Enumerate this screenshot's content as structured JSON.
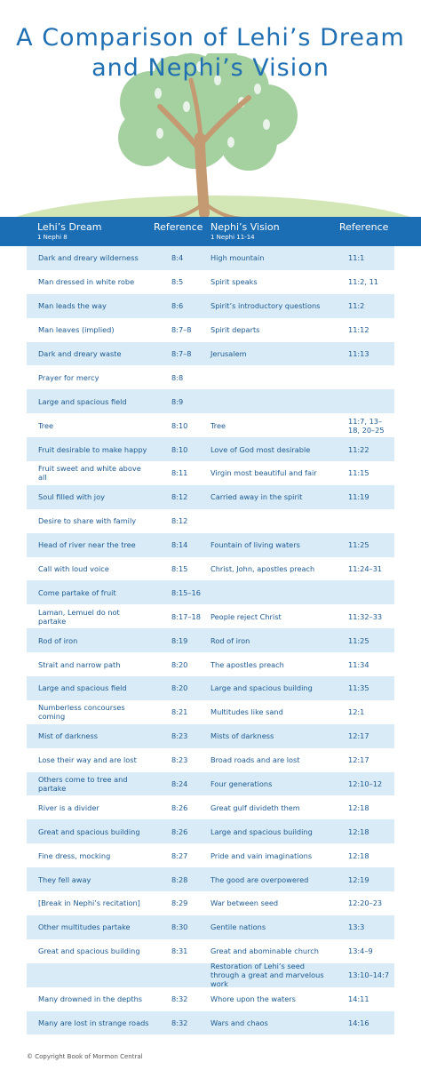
{
  "header": {
    "title": "A Comparison of Lehi’s Dream and Nephi’s Vision"
  },
  "table": {
    "columns": [
      {
        "label": "Lehi’s Dream",
        "sub": "1 Nephi 8"
      },
      {
        "label": "Reference"
      },
      {
        "label": "Nephi’s Vision",
        "sub": "1 Nephi 11-14"
      },
      {
        "label": "Reference"
      }
    ],
    "rows": [
      [
        "Dark and dreary wilderness",
        "8:4",
        "High mountain",
        "11:1"
      ],
      [
        "Man dressed in white robe",
        "8:5",
        "Spirit speaks",
        "11:2, 11"
      ],
      [
        "Man leads the way",
        "8:6",
        "Spirit’s introductory questions",
        "11:2"
      ],
      [
        "Man leaves (implied)",
        "8:7–8",
        "Spirit departs",
        "11:12"
      ],
      [
        "Dark and dreary waste",
        "8:7–8",
        "Jerusalem",
        "11:13"
      ],
      [
        "Prayer for mercy",
        "8:8",
        null,
        null
      ],
      [
        "Large and spacious field",
        "8:9",
        null,
        null
      ],
      [
        "Tree",
        "8:10",
        "Tree",
        "11:7, 13–18, 20–25"
      ],
      [
        "Fruit desirable to make happy",
        "8:10",
        "Love of God most desirable",
        "11:22"
      ],
      [
        "Fruit sweet and white above all",
        "8:11",
        "Virgin most beautiful and fair",
        "11:15"
      ],
      [
        "Soul filled with joy",
        "8:12",
        "Carried away in the spirit",
        "11:19"
      ],
      [
        "Desire to share with family",
        "8:12",
        null,
        null
      ],
      [
        "Head of river near the tree",
        "8:14",
        "Fountain of living waters",
        "11:25"
      ],
      [
        "Call with loud voice",
        "8:15",
        "Christ, John, apostles preach",
        "11:24–31"
      ],
      [
        "Come partake of fruit",
        "8:15–16",
        null,
        null
      ],
      [
        "Laman, Lemuel do not partake",
        "8:17–18",
        "People reject Christ",
        "11:32–33"
      ],
      [
        "Rod of iron",
        "8:19",
        "Rod of iron",
        "11:25"
      ],
      [
        "Strait and narrow path",
        "8:20",
        "The apostles preach",
        "11:34"
      ],
      [
        "Large and spacious field",
        "8:20",
        "Large and spacious building",
        "11:35"
      ],
      [
        "Numberless concourses coming",
        "8:21",
        "Multitudes like sand",
        "12:1"
      ],
      [
        "Mist of darkness",
        "8:23",
        "Mists of darkness",
        "12:17"
      ],
      [
        "Lose their way and are lost",
        "8:23",
        "Broad roads and are lost",
        "12:17"
      ],
      [
        "Others come to tree and partake",
        "8:24",
        "Four generations",
        "12:10–12"
      ],
      [
        "River is a divider",
        "8:26",
        "Great gulf divideth them",
        "12:18"
      ],
      [
        "Great and spacious building",
        "8:26",
        "Large and spacious building",
        "12:18"
      ],
      [
        "Fine dress, mocking",
        "8:27",
        "Pride and vain imaginations",
        "12:18"
      ],
      [
        "They fell away",
        "8:28",
        "The good are overpowered",
        "12:19"
      ],
      [
        "[Break in Nephi’s recitation]",
        "8:29",
        "War between seed",
        "12:20–23"
      ],
      [
        "Other multitudes partake",
        "8:30",
        "Gentile nations",
        "13:3"
      ],
      [
        "Great and spacious building",
        "8:31",
        "Great and abominable church",
        "13:4–9"
      ],
      [
        null,
        null,
        "Restoration of Lehi’s seed through a great and marvelous work",
        "13:10–14:7"
      ],
      [
        "Many drowned in the depths",
        "8:32",
        "Whore upon the waters",
        "14:11"
      ],
      [
        "Many are lost in strange roads",
        "8:32",
        "Wars and chaos",
        "14:16"
      ]
    ]
  },
  "footer": {
    "copyright": "© Copyright Book of Mormon Central"
  }
}
